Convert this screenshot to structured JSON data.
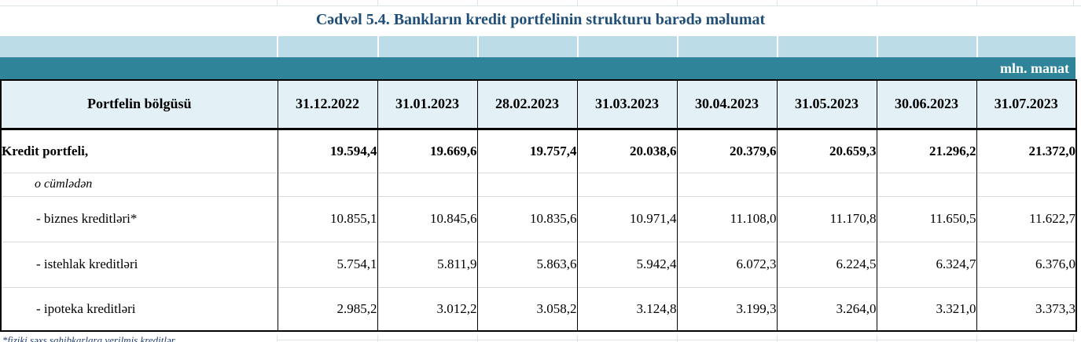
{
  "title": "Cədvəl 5.4. Bankların kredit portfelinin strukturu barədə məlumat",
  "unit_label": "mln. manat",
  "table": {
    "header": [
      "Portfelin bölgüsü",
      "31.12.2022",
      "31.01.2023",
      "28.02.2023",
      "31.03.2023",
      "30.04.2023",
      "31.05.2023",
      "30.06.2023",
      "31.07.2023"
    ],
    "rows": [
      {
        "label": "Kredit portfeli,",
        "values": [
          "19.594,4",
          "19.669,6",
          "19.757,4",
          "20.038,6",
          "20.379,6",
          "20.659,3",
          "21.296,2",
          "21.372,0"
        ]
      },
      {
        "label": "o cümlədən",
        "values": [
          "",
          "",
          "",
          "",
          "",
          "",
          "",
          ""
        ]
      },
      {
        "label": "- biznes kreditləri*",
        "values": [
          "10.855,1",
          "10.845,6",
          "10.835,6",
          "10.971,4",
          "11.108,0",
          "11.170,8",
          "11.650,5",
          "11.622,7"
        ]
      },
      {
        "label": "- istehlak kreditləri",
        "values": [
          "5.754,1",
          "5.811,9",
          "5.863,6",
          "5.942,4",
          "6.072,3",
          "6.224,5",
          "6.324,7",
          "6.376,0"
        ]
      },
      {
        "label": "- ipoteka kreditləri",
        "values": [
          "2.985,2",
          "3.012,2",
          "3.058,2",
          "3.124,8",
          "3.199,3",
          "3.264,0",
          "3.321,0",
          "3.373,3"
        ]
      }
    ]
  },
  "footnote": "*fiziki şəxs sahibkarlara verilmiş kreditlər",
  "colors": {
    "title_text": "#1F4E79",
    "band_light": "#BCDDE8",
    "band_teal": "#2F8499",
    "header_bg": "#E3F1F6",
    "border": "#000000",
    "row_divider": "#D9D9D9",
    "unit_text": "#FFFFFF"
  }
}
